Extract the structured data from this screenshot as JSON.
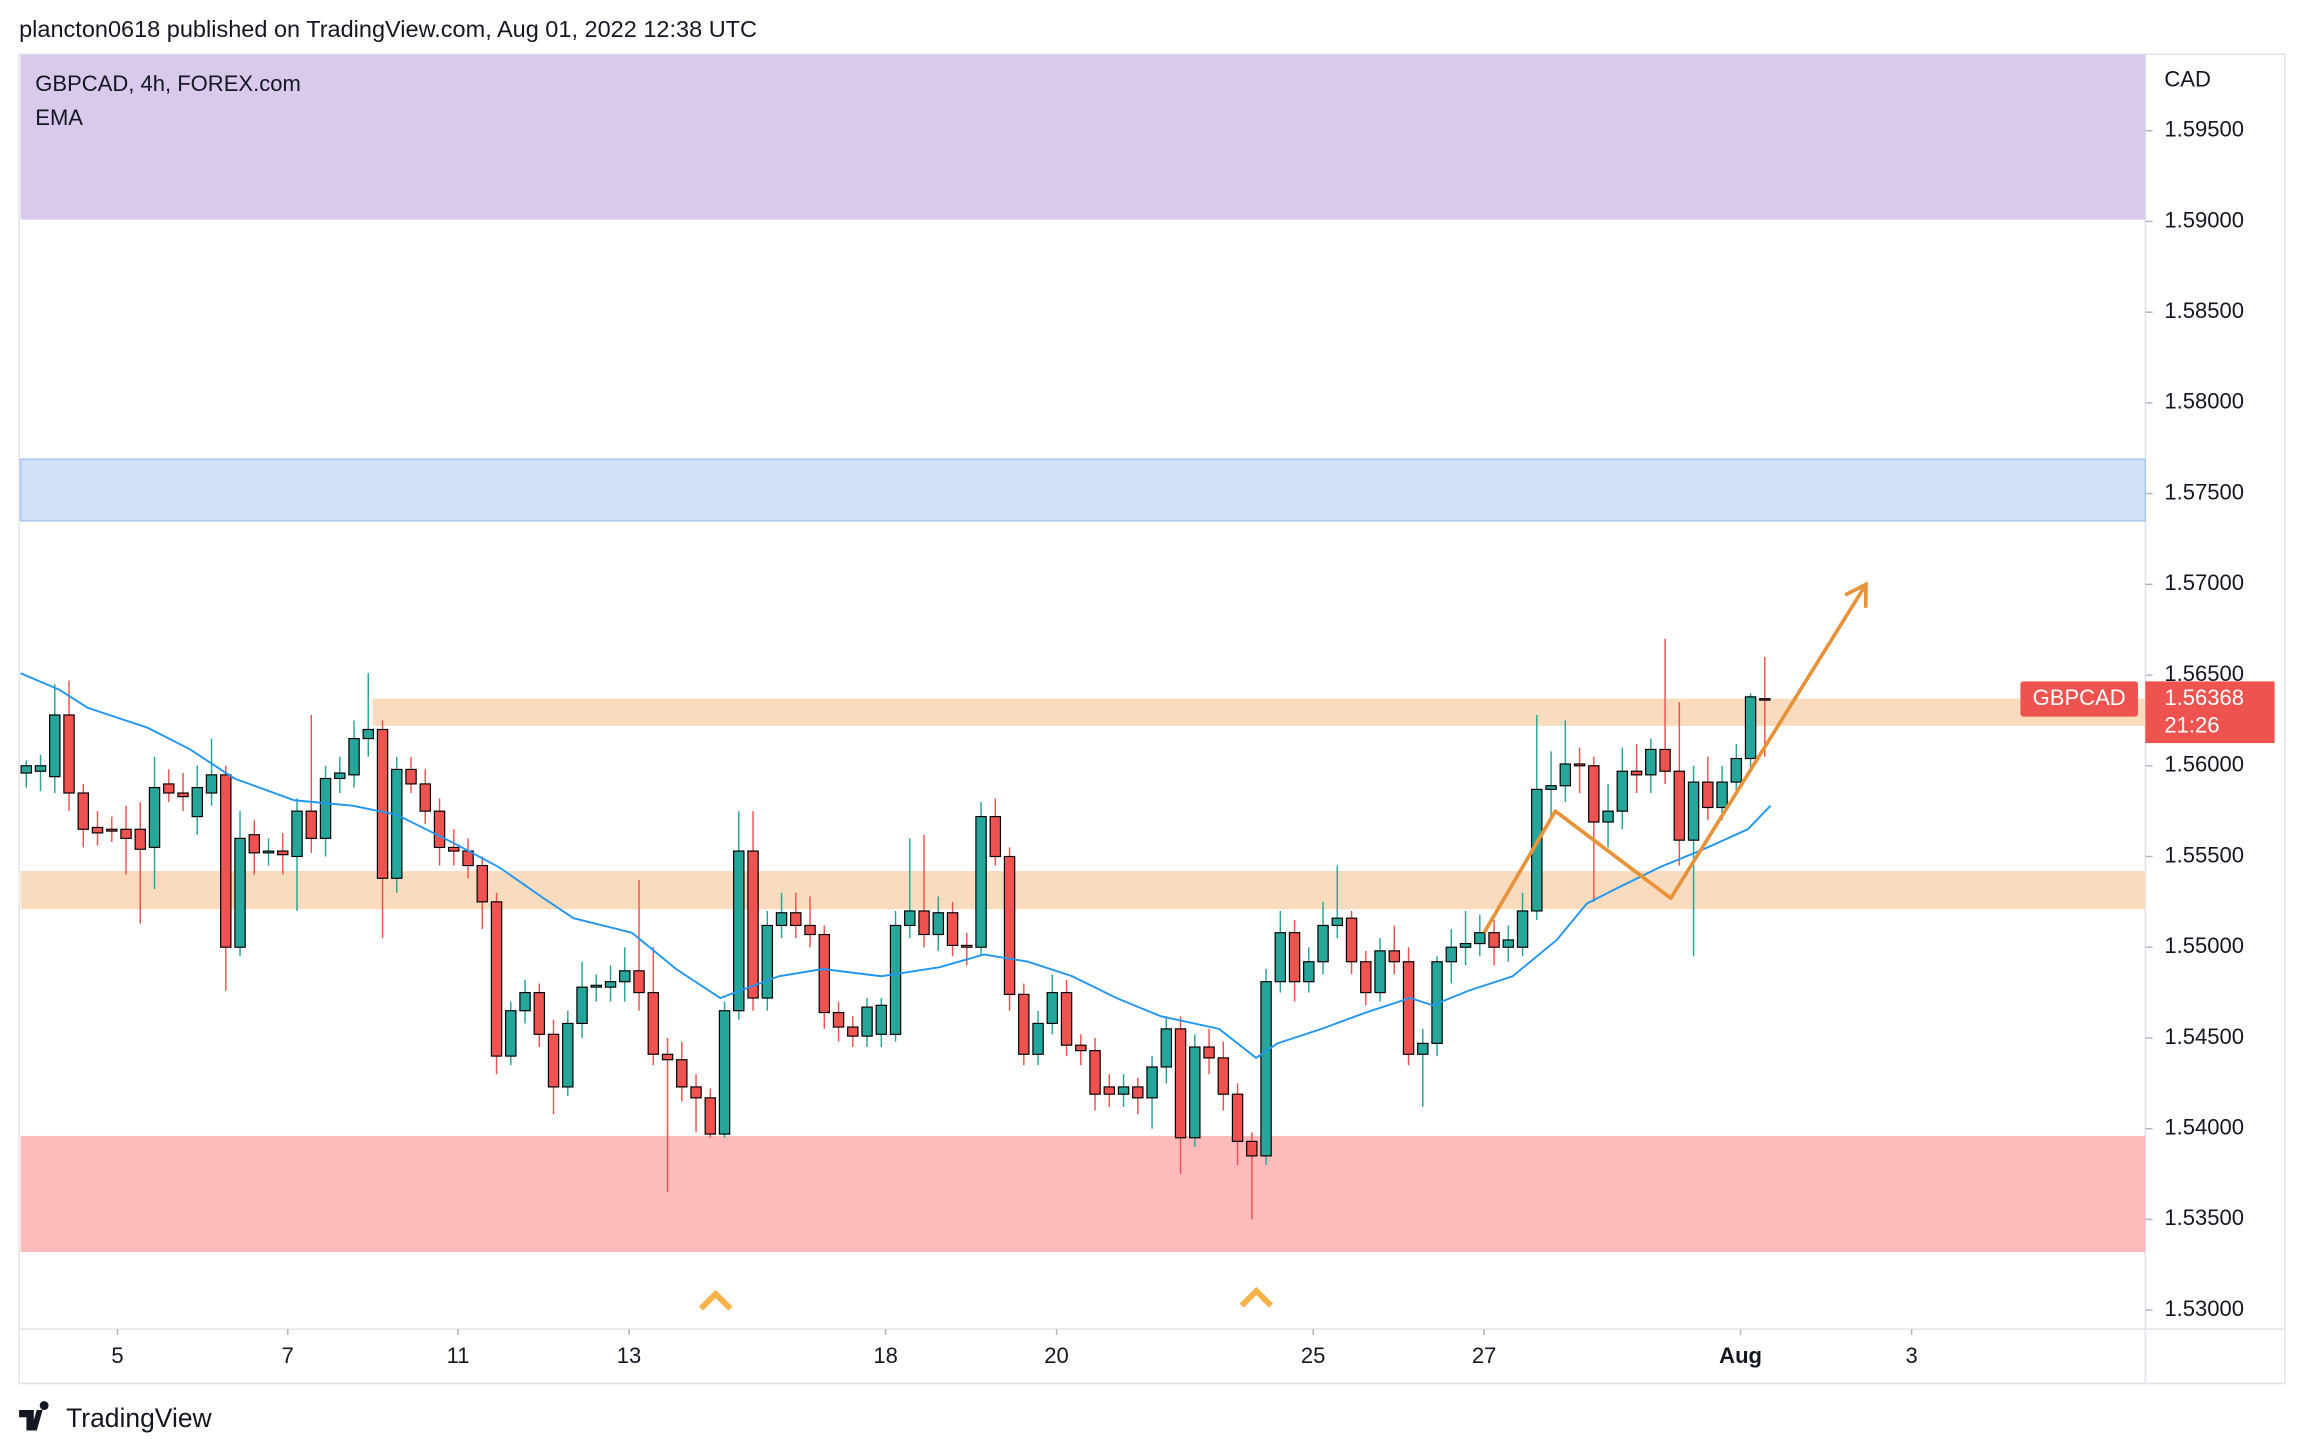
{
  "header": "plancton0618 published on TradingView.com, Aug 01, 2022 12:38 UTC",
  "footer": "TradingView",
  "chart_data": {
    "type": "candlestick",
    "legend": [
      "GBPCAD, 4h, FOREX.com",
      "EMA"
    ],
    "y_unit": "CAD",
    "xlim": [
      -0.4,
      148.7
    ],
    "xticks": [
      {
        "value": 6.4,
        "label": "5"
      },
      {
        "value": 18.35,
        "label": "7"
      },
      {
        "value": 30.3,
        "label": "11"
      },
      {
        "value": 42.3,
        "label": "13"
      },
      {
        "value": 60.3,
        "label": "18"
      },
      {
        "value": 72.3,
        "label": "20"
      },
      {
        "value": 90.3,
        "label": "25"
      },
      {
        "value": 102.3,
        "label": "27"
      },
      {
        "value": 120.3,
        "label": "Aug"
      },
      {
        "value": 132.3,
        "label": "3"
      }
    ],
    "ylim": [
      1.52895,
      1.59921
    ],
    "yticks": [
      {
        "value": 1.595,
        "label": "1.59500"
      },
      {
        "value": 1.59,
        "label": "1.59000"
      },
      {
        "value": 1.585,
        "label": "1.58500"
      },
      {
        "value": 1.58,
        "label": "1.58000"
      },
      {
        "value": 1.575,
        "label": "1.57500"
      },
      {
        "value": 1.57,
        "label": "1.57000"
      },
      {
        "value": 1.565,
        "label": "1.56500"
      },
      {
        "value": 1.56,
        "label": "1.56000"
      },
      {
        "value": 1.555,
        "label": "1.55500"
      },
      {
        "value": 1.55,
        "label": "1.55000"
      },
      {
        "value": 1.545,
        "label": "1.54500"
      },
      {
        "value": 1.54,
        "label": "1.54000"
      },
      {
        "value": 1.535,
        "label": "1.53500"
      },
      {
        "value": 1.53,
        "label": "1.53000"
      }
    ],
    "grid": false,
    "up_color": "#26a69a",
    "down_color": "#ef5350",
    "series": [
      {
        "name": "GBPCAD",
        "open": [
          1.5596,
          1.5597,
          1.5594,
          1.5628,
          1.5585,
          1.5566,
          1.5565,
          1.5565,
          1.5565,
          1.5555,
          1.559,
          1.5585,
          1.5572,
          1.5585,
          1.5595,
          1.55,
          1.5562,
          1.5552,
          1.5553,
          1.555,
          1.5575,
          1.556,
          1.5593,
          1.5595,
          1.5615,
          1.562,
          1.5538,
          1.5598,
          1.559,
          1.5575,
          1.5555,
          1.5553,
          1.5545,
          1.5525,
          1.544,
          1.5465,
          1.5475,
          1.5452,
          1.5423,
          1.5458,
          1.5478,
          1.5478,
          1.5481,
          1.5487,
          1.5475,
          1.5441,
          1.5438,
          1.5423,
          1.5417,
          1.5397,
          1.5465,
          1.5553,
          1.5472,
          1.5512,
          1.5519,
          1.5512,
          1.5507,
          1.5464,
          1.5456,
          1.5451,
          1.5452,
          1.5452,
          1.5512,
          1.552,
          1.5507,
          1.5519,
          1.5501,
          1.55,
          1.5572,
          1.555,
          1.5474,
          1.5441,
          1.5458,
          1.5475,
          1.5446,
          1.5443,
          1.5423,
          1.5419,
          1.5423,
          1.5417,
          1.5434,
          1.5455,
          1.5395,
          1.5445,
          1.5439,
          1.5419,
          1.5393,
          1.5385,
          1.5481,
          1.5508,
          1.5481,
          1.5492,
          1.5512,
          1.5516,
          1.5492,
          1.5475,
          1.5498,
          1.5492,
          1.5441,
          1.5447,
          1.5492,
          1.55,
          1.5502,
          1.5508,
          1.55,
          1.55,
          1.552,
          1.5587,
          1.5589,
          1.5601,
          1.56,
          1.5569,
          1.5575,
          1.5597,
          1.5595,
          1.5609,
          1.5597,
          1.5559,
          1.5591,
          1.5577,
          1.5591,
          1.5604,
          1.5637
        ],
        "high": [
          1.5603,
          1.5606,
          1.5645,
          1.5647,
          1.559,
          1.5575,
          1.5572,
          1.5578,
          1.558,
          1.5605,
          1.5598,
          1.5596,
          1.56,
          1.5615,
          1.56,
          1.5575,
          1.557,
          1.556,
          1.5563,
          1.5582,
          1.5628,
          1.56,
          1.5605,
          1.5625,
          1.5651,
          1.5625,
          1.5605,
          1.5605,
          1.5598,
          1.5582,
          1.5565,
          1.556,
          1.555,
          1.553,
          1.547,
          1.5482,
          1.548,
          1.546,
          1.5465,
          1.5492,
          1.5485,
          1.549,
          1.55,
          1.5537,
          1.55,
          1.545,
          1.5448,
          1.543,
          1.5422,
          1.547,
          1.5575,
          1.5575,
          1.552,
          1.553,
          1.553,
          1.5528,
          1.5512,
          1.547,
          1.5462,
          1.5472,
          1.5472,
          1.552,
          1.556,
          1.5562,
          1.5528,
          1.5525,
          1.5508,
          1.558,
          1.5582,
          1.5555,
          1.548,
          1.5465,
          1.5485,
          1.5482,
          1.5452,
          1.545,
          1.543,
          1.543,
          1.5428,
          1.544,
          1.5462,
          1.5462,
          1.5452,
          1.5455,
          1.5448,
          1.5425,
          1.5398,
          1.5488,
          1.552,
          1.5515,
          1.55,
          1.5525,
          1.5545,
          1.552,
          1.5498,
          1.5505,
          1.5512,
          1.55,
          1.5455,
          1.5495,
          1.551,
          1.552,
          1.5518,
          1.5515,
          1.5512,
          1.553,
          1.5628,
          1.5608,
          1.5625,
          1.561,
          1.5605,
          1.559,
          1.561,
          1.5612,
          1.5615,
          1.567,
          1.5635,
          1.56,
          1.5605,
          1.56,
          1.5612,
          1.564,
          1.566
        ],
        "low": [
          1.5588,
          1.5586,
          1.5585,
          1.5575,
          1.5555,
          1.5556,
          1.5558,
          1.554,
          1.5513,
          1.5532,
          1.558,
          1.5575,
          1.5562,
          1.5578,
          1.5476,
          1.5495,
          1.554,
          1.5545,
          1.554,
          1.552,
          1.5552,
          1.555,
          1.5585,
          1.5588,
          1.5605,
          1.5505,
          1.553,
          1.5585,
          1.5568,
          1.5545,
          1.5545,
          1.5538,
          1.551,
          1.543,
          1.5435,
          1.5458,
          1.5445,
          1.5408,
          1.5418,
          1.545,
          1.547,
          1.547,
          1.547,
          1.5465,
          1.5435,
          1.5365,
          1.5415,
          1.5398,
          1.5395,
          1.5395,
          1.546,
          1.5465,
          1.5465,
          1.5505,
          1.5505,
          1.55,
          1.5455,
          1.5448,
          1.5445,
          1.5445,
          1.5445,
          1.5448,
          1.5505,
          1.55,
          1.5498,
          1.5495,
          1.549,
          1.5495,
          1.5545,
          1.5465,
          1.5435,
          1.5435,
          1.5452,
          1.544,
          1.5435,
          1.541,
          1.5412,
          1.5412,
          1.5408,
          1.54,
          1.5425,
          1.5375,
          1.539,
          1.543,
          1.541,
          1.538,
          1.535,
          1.538,
          1.5475,
          1.547,
          1.5475,
          1.5485,
          1.5505,
          1.5485,
          1.5468,
          1.547,
          1.5485,
          1.5435,
          1.5412,
          1.544,
          1.548,
          1.549,
          1.5495,
          1.549,
          1.5492,
          1.5495,
          1.5515,
          1.557,
          1.558,
          1.5585,
          1.5525,
          1.5555,
          1.5565,
          1.5585,
          1.5585,
          1.559,
          1.5545,
          1.5495,
          1.557,
          1.557,
          1.5585,
          1.5598,
          1.5605
        ],
        "close": [
          1.56,
          1.56,
          1.5628,
          1.5585,
          1.5565,
          1.5563,
          1.5564,
          1.556,
          1.5554,
          1.5588,
          1.5585,
          1.5583,
          1.5588,
          1.5595,
          1.55,
          1.556,
          1.5552,
          1.5553,
          1.5551,
          1.5575,
          1.556,
          1.5593,
          1.5596,
          1.5615,
          1.562,
          1.5538,
          1.5598,
          1.559,
          1.5575,
          1.5555,
          1.5553,
          1.5545,
          1.5525,
          1.544,
          1.5465,
          1.5475,
          1.5452,
          1.5423,
          1.5458,
          1.5478,
          1.5479,
          1.5481,
          1.5487,
          1.5475,
          1.5441,
          1.5438,
          1.5423,
          1.5417,
          1.5397,
          1.5465,
          1.5553,
          1.5472,
          1.5512,
          1.5519,
          1.5512,
          1.5507,
          1.5464,
          1.5456,
          1.5451,
          1.5467,
          1.5468,
          1.5512,
          1.552,
          1.5507,
          1.5519,
          1.5501,
          1.55,
          1.5572,
          1.555,
          1.5474,
          1.5441,
          1.5458,
          1.5475,
          1.5446,
          1.5443,
          1.5419,
          1.5419,
          1.5423,
          1.5417,
          1.5434,
          1.5455,
          1.5395,
          1.5445,
          1.5439,
          1.5419,
          1.5393,
          1.5385,
          1.5481,
          1.5508,
          1.5481,
          1.5492,
          1.5512,
          1.5516,
          1.5492,
          1.5475,
          1.5498,
          1.5492,
          1.5441,
          1.5447,
          1.5492,
          1.55,
          1.5502,
          1.5508,
          1.55,
          1.5504,
          1.552,
          1.5587,
          1.5589,
          1.5601,
          1.56,
          1.5569,
          1.5575,
          1.5597,
          1.5595,
          1.5609,
          1.5597,
          1.5559,
          1.5591,
          1.5577,
          1.5591,
          1.5604,
          1.5638,
          1.56368
        ]
      }
    ],
    "ema": {
      "name": "EMA",
      "color": "#2196f3",
      "x": [
        -0.4,
        2.3,
        4.3,
        8.5,
        11.5,
        14.6,
        18.8,
        22.9,
        26,
        30.1,
        33.2,
        36.3,
        38.4,
        42.5,
        45.6,
        48.7,
        52.8,
        55.9,
        60,
        64.1,
        67.2,
        70.3,
        73.4,
        76.5,
        79.6,
        83.7,
        86.3,
        87.8,
        90.9,
        94,
        97.1,
        98.7,
        101.2,
        104.3,
        107.4,
        109.5,
        111.5,
        114.6,
        117.7,
        120.8,
        122.4
      ],
      "values": [
        1.5651,
        1.5642,
        1.5632,
        1.5621,
        1.5609,
        1.5593,
        1.5581,
        1.5578,
        1.5573,
        1.5557,
        1.5544,
        1.5527,
        1.5516,
        1.5508,
        1.5488,
        1.5472,
        1.5484,
        1.5488,
        1.5484,
        1.5489,
        1.5496,
        1.5492,
        1.5484,
        1.5472,
        1.5462,
        1.5455,
        1.5439,
        1.5447,
        1.5455,
        1.5464,
        1.5472,
        1.5468,
        1.5476,
        1.5484,
        1.5504,
        1.5524,
        1.5532,
        1.5544,
        1.5554,
        1.5565,
        1.5578
      ]
    },
    "zones": [
      {
        "low": 1.5901,
        "high": 1.59921,
        "color": "#d9c9ec"
      },
      {
        "low": 1.5735,
        "high": 1.5769,
        "color": "#cfe0f8"
      },
      {
        "low": 1.5622,
        "high": 1.5637,
        "color": "#f9dcbd",
        "x_start": 24.3
      },
      {
        "low": 1.5521,
        "high": 1.5542,
        "color": "#f9dcbd"
      },
      {
        "low": 1.5332,
        "high": 1.5396,
        "color": "#fdbbbb"
      }
    ],
    "drawing": {
      "color": "#e8923a",
      "x": [
        102.3,
        107.3,
        115.4,
        129.1
      ],
      "values": [
        1.5508,
        1.5575,
        1.5527,
        1.57
      ]
    },
    "last_price": {
      "value": 1.56368,
      "label": "1.56368"
    },
    "countdown": "21:26"
  }
}
